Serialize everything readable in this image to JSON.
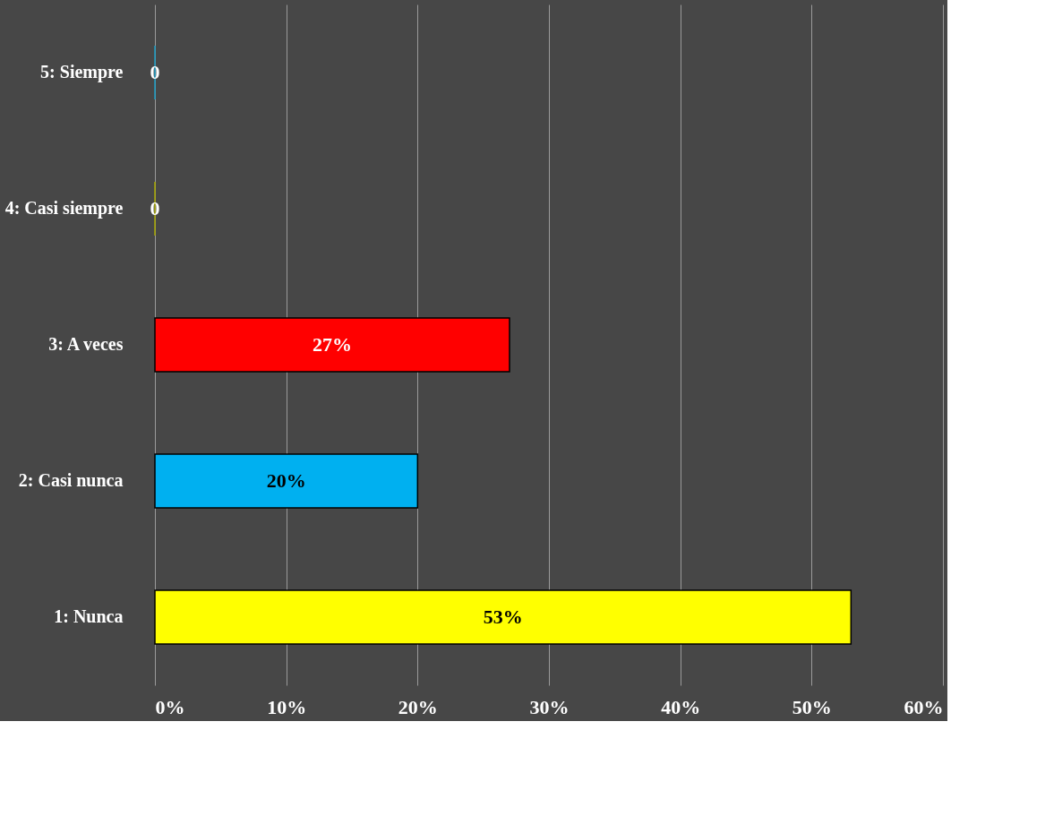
{
  "chart_data": {
    "type": "bar",
    "orientation": "horizontal",
    "categories": [
      "5: Siempre",
      "4: Casi siempre",
      "3: A veces",
      "2: Casi nunca",
      "1: Nunca"
    ],
    "values": [
      0,
      0,
      27,
      20,
      53
    ],
    "colors": [
      "#1a9cc4",
      "#a8a800",
      "#ff0000",
      "#00b0f0",
      "#ffff00"
    ],
    "value_labels": [
      "0",
      "0",
      "27%",
      "20%",
      "53%"
    ],
    "xlim": [
      0,
      60
    ],
    "xticks": [
      {
        "value": 0,
        "label": "0%"
      },
      {
        "value": 10,
        "label": "10%"
      },
      {
        "value": 20,
        "label": "20%"
      },
      {
        "value": 30,
        "label": "30%"
      },
      {
        "value": 40,
        "label": "40%"
      },
      {
        "value": 50,
        "label": "50%"
      },
      {
        "value": 60,
        "label": "60%"
      }
    ],
    "grid": "x"
  }
}
